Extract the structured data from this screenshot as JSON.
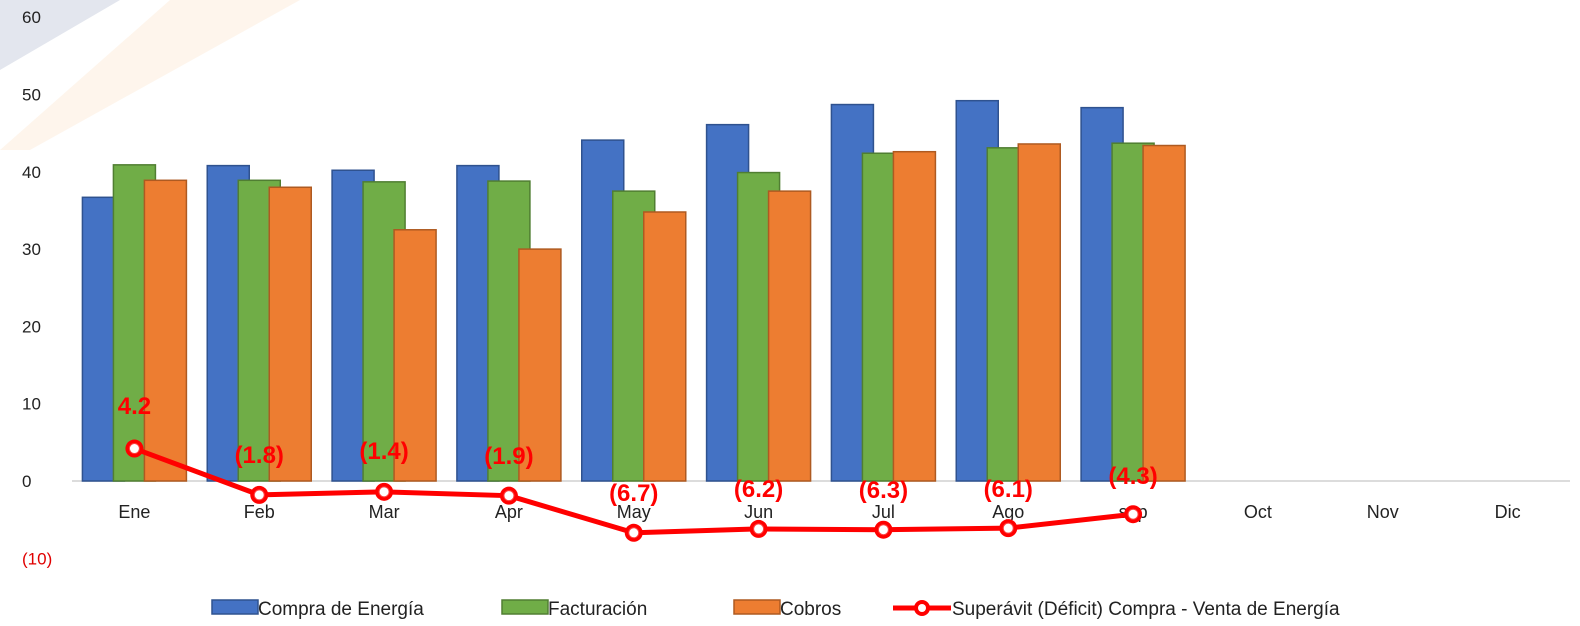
{
  "chart_data": {
    "type": "bar",
    "categories": [
      "Ene",
      "Feb",
      "Mar",
      "Apr",
      "May",
      "Jun",
      "Jul",
      "Ago",
      "sep",
      "Oct",
      "Nov",
      "Dic"
    ],
    "yticks": [
      "60",
      "50",
      "40",
      "30",
      "20",
      "10",
      "0",
      "(10)"
    ],
    "ylim": [
      -10,
      60
    ],
    "grid": false,
    "legend_position": "bottom",
    "series": [
      {
        "name": "Compra de Energía",
        "type": "bar",
        "color": "#4472c4",
        "values": [
          36.7,
          40.8,
          40.2,
          40.8,
          44.1,
          46.1,
          48.7,
          49.2,
          48.3,
          null,
          null,
          null
        ]
      },
      {
        "name": "Facturación",
        "type": "bar",
        "color": "#70ad47",
        "values": [
          40.9,
          38.9,
          38.7,
          38.8,
          37.5,
          39.9,
          42.4,
          43.1,
          43.7,
          null,
          null,
          null
        ]
      },
      {
        "name": "Cobros",
        "type": "bar",
        "color": "#ed7d31",
        "values": [
          38.9,
          38.0,
          32.5,
          30.0,
          34.8,
          37.5,
          42.6,
          43.6,
          43.4,
          null,
          null,
          null
        ]
      },
      {
        "name": "Superávit (Déficit) Compra - Venta de Energía",
        "type": "line",
        "color": "#ff0000",
        "values": [
          4.2,
          -1.8,
          -1.4,
          -1.9,
          -6.7,
          -6.2,
          -6.3,
          -6.1,
          -4.3,
          null,
          null,
          null
        ],
        "labels": [
          "4.2",
          "(1.8)",
          "(1.4)",
          "(1.9)",
          "(6.7)",
          "(6.2)",
          "(6.3)",
          "(6.1)",
          "(4.3)",
          "",
          "",
          ""
        ]
      }
    ]
  }
}
